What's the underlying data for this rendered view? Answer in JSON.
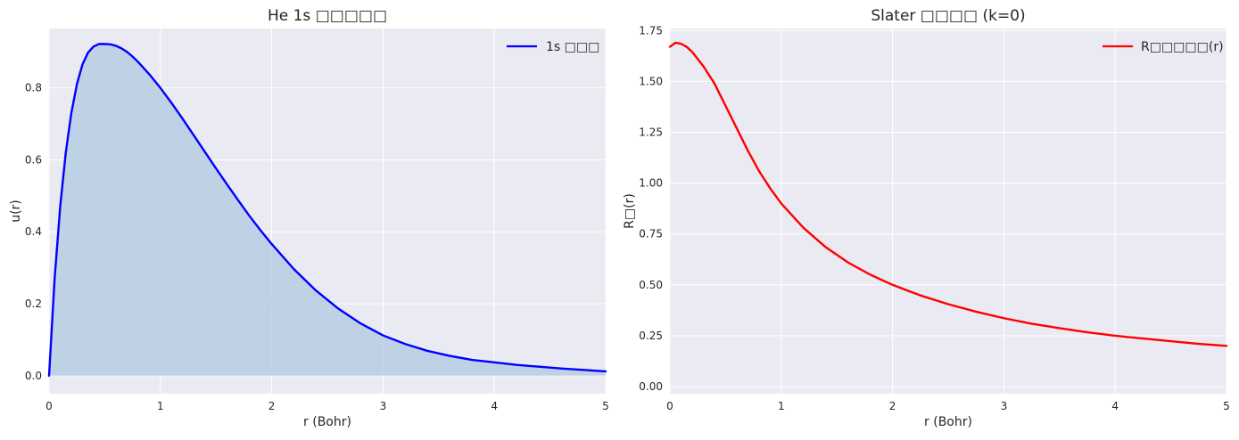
{
  "chart_data": [
    {
      "type": "area",
      "title": "He 1s □□□□□",
      "xlabel": "r (Bohr)",
      "ylabel": "u(r)",
      "xlim": [
        0,
        5
      ],
      "ylim": [
        -0.05,
        0.965
      ],
      "x_ticks": [
        0,
        1,
        2,
        3,
        4,
        5
      ],
      "y_ticks": [
        0.0,
        0.2,
        0.4,
        0.6,
        0.8
      ],
      "y_tick_labels": [
        "0.0",
        "0.2",
        "0.4",
        "0.6",
        "0.8"
      ],
      "grid": true,
      "legend_position": "top-right",
      "series": [
        {
          "name": "1s □□□",
          "color": "#0000ff",
          "fill_color": "#b0c8e0",
          "x": [
            0,
            0.05,
            0.1,
            0.15,
            0.2,
            0.25,
            0.3,
            0.35,
            0.4,
            0.45,
            0.5,
            0.55,
            0.6,
            0.65,
            0.7,
            0.75,
            0.8,
            0.9,
            1.0,
            1.1,
            1.2,
            1.3,
            1.4,
            1.5,
            1.6,
            1.7,
            1.8,
            1.9,
            2.0,
            2.2,
            2.4,
            2.6,
            2.8,
            3.0,
            3.2,
            3.4,
            3.6,
            3.8,
            4.0,
            4.2,
            4.4,
            4.6,
            4.8,
            5.0
          ],
          "y": [
            0.0,
            0.27,
            0.47,
            0.62,
            0.73,
            0.81,
            0.865,
            0.898,
            0.915,
            0.922,
            0.922,
            0.921,
            0.917,
            0.91,
            0.9,
            0.887,
            0.872,
            0.838,
            0.8,
            0.758,
            0.714,
            0.668,
            0.622,
            0.576,
            0.531,
            0.487,
            0.444,
            0.404,
            0.366,
            0.296,
            0.236,
            0.186,
            0.145,
            0.112,
            0.088,
            0.069,
            0.055,
            0.044,
            0.037,
            0.03,
            0.025,
            0.02,
            0.016,
            0.012
          ]
        }
      ]
    },
    {
      "type": "line",
      "title": "Slater □□□□ (k=0)",
      "xlabel": "r (Bohr)",
      "ylabel": "R□(r)",
      "xlim": [
        0,
        5
      ],
      "ylim": [
        -0.035,
        1.76
      ],
      "x_ticks": [
        0,
        1,
        2,
        3,
        4,
        5
      ],
      "y_ticks": [
        0.0,
        0.25,
        0.5,
        0.75,
        1.0,
        1.25,
        1.5,
        1.75
      ],
      "y_tick_labels": [
        "0.00",
        "0.25",
        "0.50",
        "0.75",
        "1.00",
        "1.25",
        "1.50",
        "1.75"
      ],
      "grid": true,
      "legend_position": "top-right",
      "series": [
        {
          "name": "R□□□□□(r)",
          "color": "#ff0000",
          "x": [
            0,
            0.05,
            0.1,
            0.15,
            0.2,
            0.3,
            0.4,
            0.5,
            0.6,
            0.7,
            0.8,
            0.9,
            1.0,
            1.2,
            1.4,
            1.6,
            1.8,
            2.0,
            2.25,
            2.5,
            2.75,
            3.0,
            3.25,
            3.5,
            3.75,
            4.0,
            4.25,
            4.5,
            4.75,
            5.0
          ],
          "y": [
            1.67,
            1.69,
            1.685,
            1.67,
            1.645,
            1.575,
            1.49,
            1.38,
            1.27,
            1.16,
            1.06,
            0.975,
            0.9,
            0.78,
            0.685,
            0.61,
            0.55,
            0.5,
            0.448,
            0.405,
            0.368,
            0.336,
            0.309,
            0.287,
            0.267,
            0.25,
            0.236,
            0.223,
            0.21,
            0.2
          ]
        }
      ]
    }
  ]
}
